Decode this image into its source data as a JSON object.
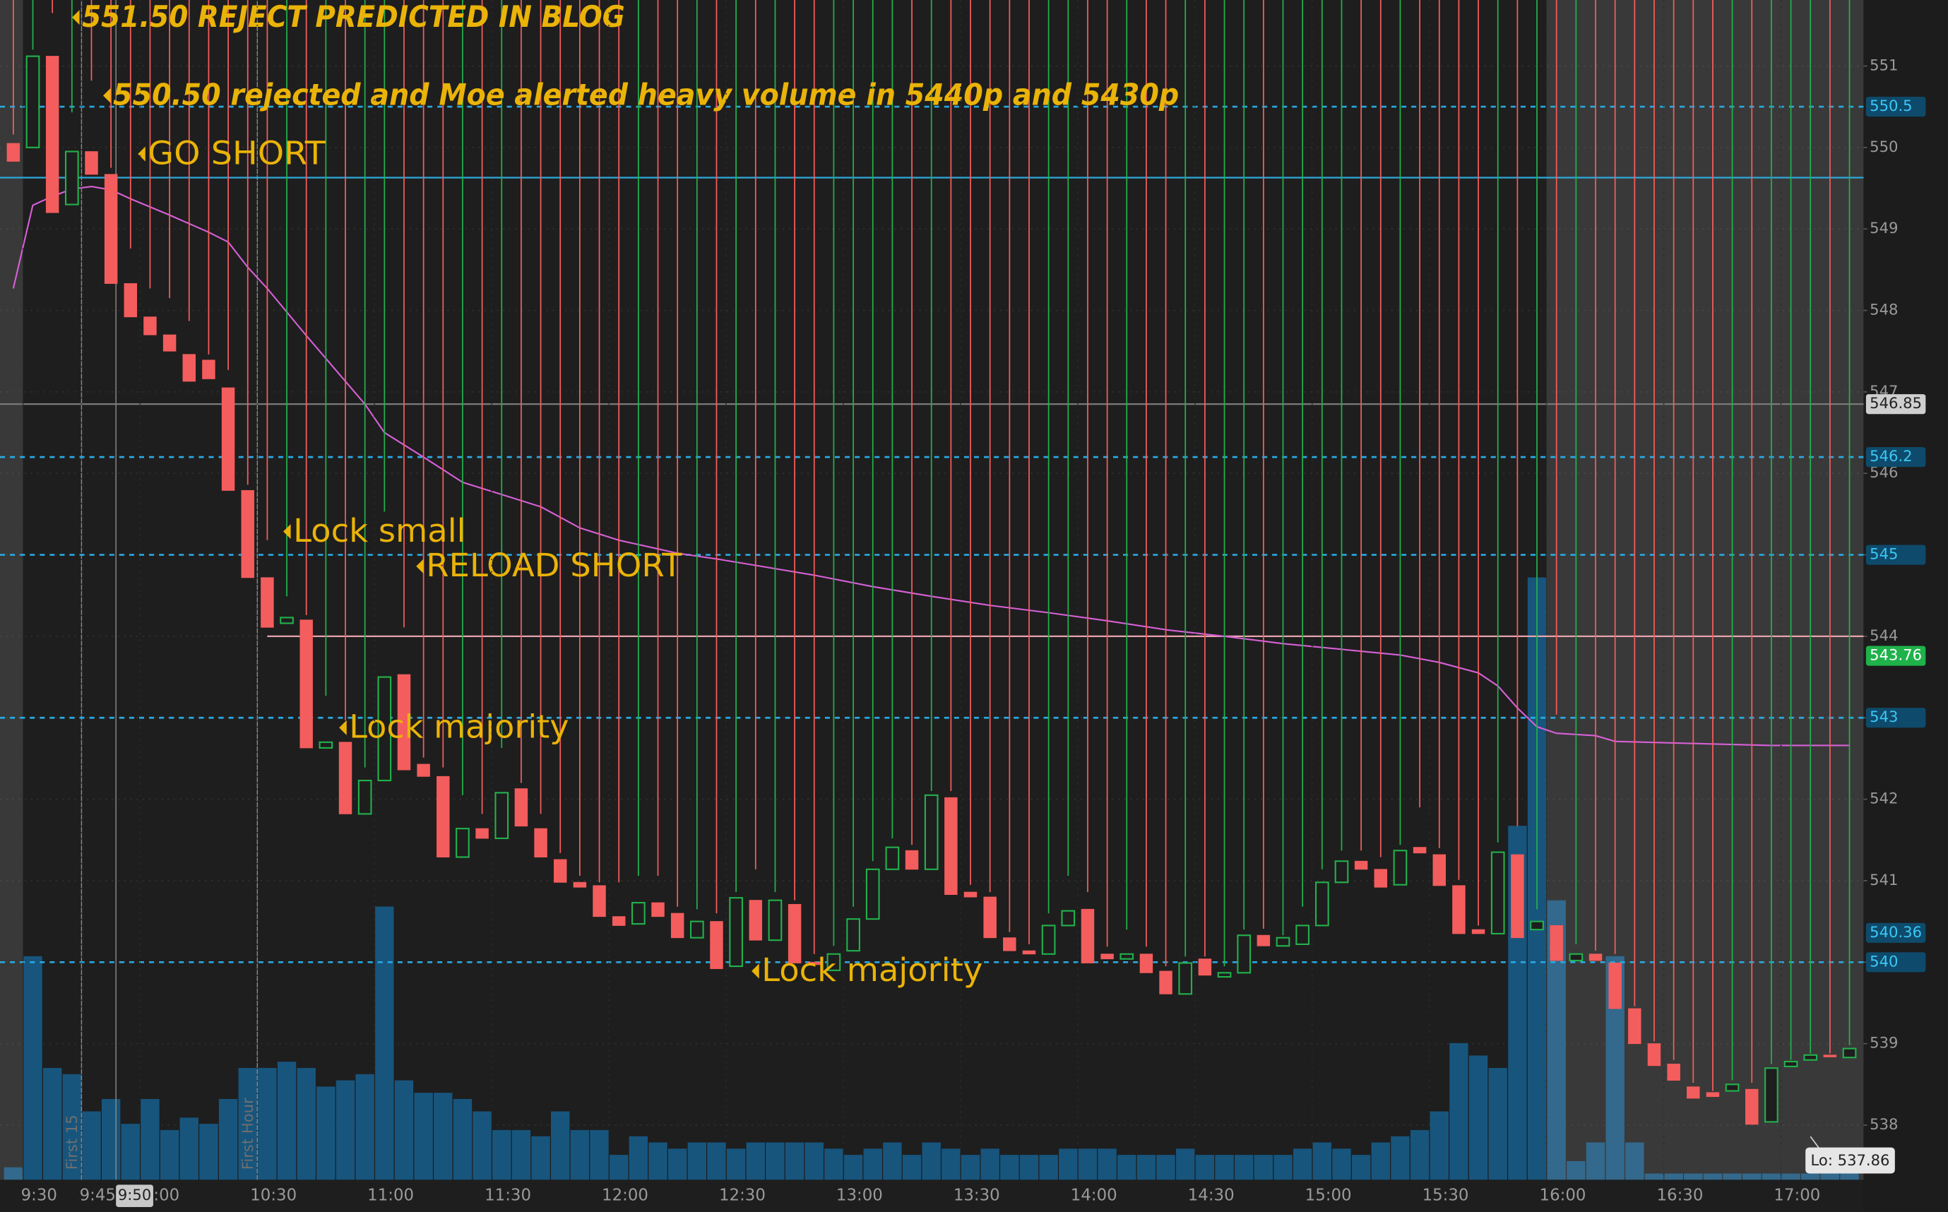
{
  "chart_data": {
    "type": "candlestick",
    "x": [
      "9:25",
      "9:30",
      "9:35",
      "9:40",
      "9:45",
      "9:50",
      "9:55",
      "10:00",
      "10:05",
      "10:10",
      "10:15",
      "10:20",
      "10:25",
      "10:30",
      "10:35",
      "10:40",
      "10:45",
      "10:50",
      "10:55",
      "11:00",
      "11:05",
      "11:10",
      "11:15",
      "11:20",
      "11:25",
      "11:30",
      "11:35",
      "11:40",
      "11:45",
      "11:50",
      "11:55",
      "12:00",
      "12:05",
      "12:10",
      "12:15",
      "12:20",
      "12:25",
      "12:30",
      "12:35",
      "12:40",
      "12:45",
      "12:50",
      "12:55",
      "13:00",
      "13:05",
      "13:10",
      "13:15",
      "13:20",
      "13:25",
      "13:30",
      "13:35",
      "13:40",
      "13:45",
      "13:50",
      "13:55",
      "14:00",
      "14:05",
      "14:10",
      "14:15",
      "14:20",
      "14:25",
      "14:30",
      "14:35",
      "14:40",
      "14:45",
      "14:50",
      "14:55",
      "15:00",
      "15:05",
      "15:10",
      "15:15",
      "15:20",
      "15:25",
      "15:30",
      "15:35",
      "15:40",
      "15:45",
      "15:50",
      "15:55",
      "16:00",
      "16:05",
      "16:10",
      "16:15",
      "16:20",
      "16:25",
      "16:30",
      "16:35",
      "16:40",
      "16:45",
      "16:50",
      "16:55",
      "17:00",
      "17:05",
      "17:10",
      "17:15"
    ],
    "open": [
      550.05,
      550.0,
      551.12,
      549.3,
      549.95,
      549.67,
      548.33,
      547.92,
      547.7,
      547.46,
      547.39,
      547.05,
      545.79,
      544.72,
      544.16,
      544.2,
      542.63,
      542.7,
      541.82,
      542.23,
      543.53,
      542.43,
      542.28,
      541.29,
      541.64,
      541.52,
      542.13,
      541.64,
      541.26,
      540.98,
      540.94,
      540.56,
      540.47,
      540.73,
      540.6,
      540.3,
      540.5,
      539.95,
      540.76,
      540.27,
      540.71,
      540.0,
      539.9,
      540.14,
      540.53,
      541.14,
      541.37,
      541.14,
      542.02,
      540.86,
      540.8,
      540.3,
      540.14,
      540.1,
      540.45,
      540.65,
      540.1,
      540.04,
      540.1,
      539.89,
      539.61,
      540.04,
      539.82,
      539.87,
      540.33,
      540.2,
      540.22,
      540.45,
      540.98,
      541.24,
      541.14,
      540.95,
      541.41,
      541.32,
      540.94,
      540.4,
      540.35,
      541.32,
      540.4,
      540.45,
      540.02,
      540.1,
      539.99,
      539.43,
      539.0,
      538.75,
      538.47,
      538.4,
      538.42,
      538.44,
      538.04,
      538.72,
      538.8,
      538.86,
      538.83
    ],
    "high": [
      550.16,
      551.2,
      551.65,
      550.43,
      550.82,
      549.75,
      548.76,
      548.27,
      548.15,
      547.87,
      547.46,
      547.27,
      545.86,
      545.18,
      544.49,
      544.26,
      543.27,
      542.97,
      542.39,
      545.53,
      544.11,
      542.51,
      542.39,
      542.05,
      541.82,
      542.63,
      542.2,
      541.82,
      541.34,
      541.06,
      540.98,
      540.98,
      541.06,
      541.06,
      540.68,
      540.65,
      540.6,
      540.86,
      541.14,
      540.86,
      540.76,
      540.1,
      540.2,
      540.68,
      541.24,
      541.52,
      541.44,
      542.1,
      542.1,
      540.95,
      540.86,
      540.37,
      540.22,
      540.6,
      541.06,
      540.86,
      540.19,
      540.4,
      540.19,
      539.95,
      540.07,
      540.07,
      539.95,
      540.4,
      540.41,
      540.33,
      540.68,
      541.14,
      541.37,
      541.37,
      541.29,
      541.44,
      541.9,
      541.4,
      541.01,
      540.45,
      541.47,
      541.67,
      540.65,
      543.04,
      540.22,
      540.14,
      540.1,
      539.46,
      539.03,
      538.8,
      538.52,
      538.42,
      538.55,
      538.52,
      538.75,
      538.8,
      538.88,
      538.88,
      538.98
    ],
    "low": {
      "value": 537.86,
      "label": "Lo: 537.86",
      "time": "17:05"
    },
    "close": [
      549.83,
      551.12,
      549.2,
      549.95,
      549.67,
      548.33,
      547.92,
      547.7,
      547.5,
      547.13,
      547.16,
      545.79,
      544.72,
      544.11,
      544.23,
      542.63,
      542.7,
      541.82,
      542.23,
      543.5,
      542.36,
      542.28,
      541.29,
      541.64,
      541.52,
      542.08,
      541.67,
      541.29,
      540.98,
      540.92,
      540.56,
      540.45,
      540.73,
      540.56,
      540.3,
      540.5,
      539.92,
      540.79,
      540.27,
      540.76,
      539.99,
      539.97,
      540.1,
      540.53,
      541.14,
      541.41,
      541.14,
      542.05,
      540.83,
      540.8,
      540.3,
      540.14,
      540.1,
      540.45,
      540.63,
      539.99,
      540.04,
      540.1,
      539.87,
      539.61,
      539.99,
      539.84,
      539.87,
      540.33,
      540.2,
      540.3,
      540.45,
      540.98,
      541.24,
      541.14,
      540.92,
      541.37,
      541.34,
      540.94,
      540.35,
      540.35,
      541.35,
      540.3,
      540.5,
      540.02,
      540.1,
      540.02,
      539.43,
      539.0,
      538.73,
      538.55,
      538.33,
      538.35,
      538.5,
      538.01,
      538.7,
      538.78,
      538.86,
      538.84,
      538.94
    ],
    "volume": [
      2,
      36,
      18,
      17,
      11,
      13,
      9,
      13,
      8,
      10,
      9,
      13,
      18,
      18,
      19,
      18,
      15,
      16,
      17,
      44,
      16,
      14,
      14,
      13,
      11,
      8,
      8,
      7,
      11,
      8,
      8,
      4,
      7,
      6,
      5,
      6,
      6,
      5,
      6,
      6,
      6,
      6,
      5,
      4,
      5,
      6,
      4,
      6,
      5,
      4,
      5,
      4,
      4,
      4,
      5,
      5,
      5,
      4,
      4,
      4,
      5,
      4,
      4,
      4,
      4,
      4,
      5,
      6,
      5,
      4,
      6,
      7,
      8,
      11,
      22,
      20,
      18,
      57,
      97,
      45,
      3,
      6,
      36,
      6,
      1,
      1,
      1,
      1,
      1,
      1,
      1,
      1,
      1,
      1,
      1
    ],
    "up_color": "#22b14c",
    "down_color": "#f45d5d",
    "volume_color": "#17557d",
    "vwap": {
      "color": "#d760d7",
      "x": [
        "9:25",
        "9:30",
        "9:35",
        "9:40",
        "9:45",
        "9:50",
        "9:55",
        "10:05",
        "10:15",
        "10:20",
        "10:25",
        "10:30",
        "10:40",
        "10:55",
        "11:00",
        "11:10",
        "11:20",
        "11:30",
        "11:40",
        "11:50",
        "12:00",
        "12:15",
        "12:25",
        "12:35",
        "12:50",
        "13:05",
        "13:20",
        "13:35",
        "13:50",
        "14:05",
        "14:20",
        "14:35",
        "14:50",
        "15:05",
        "15:20",
        "15:30",
        "15:40",
        "15:45",
        "15:50",
        "15:55",
        "16:00",
        "16:10",
        "16:15",
        "16:30",
        "16:55",
        "17:15"
      ],
      "values": [
        548.27,
        549.29,
        549.4,
        549.49,
        549.52,
        549.48,
        549.37,
        549.17,
        548.96,
        548.84,
        548.53,
        548.27,
        547.69,
        546.85,
        546.5,
        546.2,
        545.89,
        545.74,
        545.59,
        545.33,
        545.18,
        545.02,
        544.95,
        544.87,
        544.75,
        544.61,
        544.49,
        544.38,
        544.29,
        544.19,
        544.08,
        544.0,
        543.91,
        543.84,
        543.77,
        543.68,
        543.55,
        543.39,
        543.12,
        542.89,
        542.81,
        542.78,
        542.71,
        542.69,
        542.66,
        542.66
      ]
    },
    "xlim": [
      "9:20",
      "17:17"
    ],
    "ylim": [
      537.33,
      551.81
    ],
    "y2lim": [
      0,
      190
    ],
    "grid": true,
    "yticks": [
      538,
      539,
      540,
      541,
      542,
      543,
      544,
      545,
      546,
      547,
      548,
      549,
      550,
      551
    ],
    "xticks": [
      "9:30",
      "9:45",
      "10:00",
      "10:30",
      "11:00",
      "11:30",
      "12:00",
      "12:30",
      "13:00",
      "13:30",
      "14:00",
      "14:30",
      "15:00",
      "15:30",
      "16:00",
      "16:30",
      "17:00"
    ],
    "regular_hours": [
      "9:30",
      "16:00"
    ],
    "markers": [
      {
        "time": "9:45",
        "label": "First 15"
      },
      {
        "time": "10:30",
        "label": "First Hour"
      }
    ],
    "cursor": "9:50",
    "price_lines": [
      {
        "value": 550.5,
        "color": "#29a9e1",
        "dash": true,
        "line": true,
        "badge": true
      },
      {
        "value": 549.63,
        "color": "#2fa9dc",
        "dash": false,
        "line": true,
        "badge": false
      },
      {
        "value": 546.85,
        "color": "#7a7a7a",
        "dash": false,
        "line": true,
        "badge": true
      },
      {
        "value": 546.2,
        "color": "#29a9e1",
        "dash": true,
        "line": true,
        "badge": true
      },
      {
        "value": 545,
        "color": "#29a9e1",
        "dash": true,
        "line": true,
        "badge": true
      },
      {
        "value": 544.0,
        "color": "#e8a3ad",
        "dash": false,
        "line": true,
        "badge": false,
        "start": "10:30"
      },
      {
        "value": 543.76,
        "color": "#1fb24a",
        "dash": false,
        "line": false,
        "badge": true
      },
      {
        "value": 543,
        "color": "#29a9e1",
        "dash": true,
        "line": true,
        "badge": true
      },
      {
        "value": 540.36,
        "color": "#29a9e1",
        "dash": false,
        "line": false,
        "badge": true
      },
      {
        "value": 540,
        "color": "#29a9e1",
        "dash": true,
        "line": true,
        "badge": true
      }
    ],
    "annotations": [
      "551.50 REJECT PREDICTED IN BLOG",
      "550.50 rejected and Moe alerted heavy volume in 5440p and 5430p",
      "GO SHORT",
      "Lock small",
      "RELOAD SHORT",
      "Lock majority",
      "Lock majority"
    ],
    "annotation_color": "#eab308"
  }
}
